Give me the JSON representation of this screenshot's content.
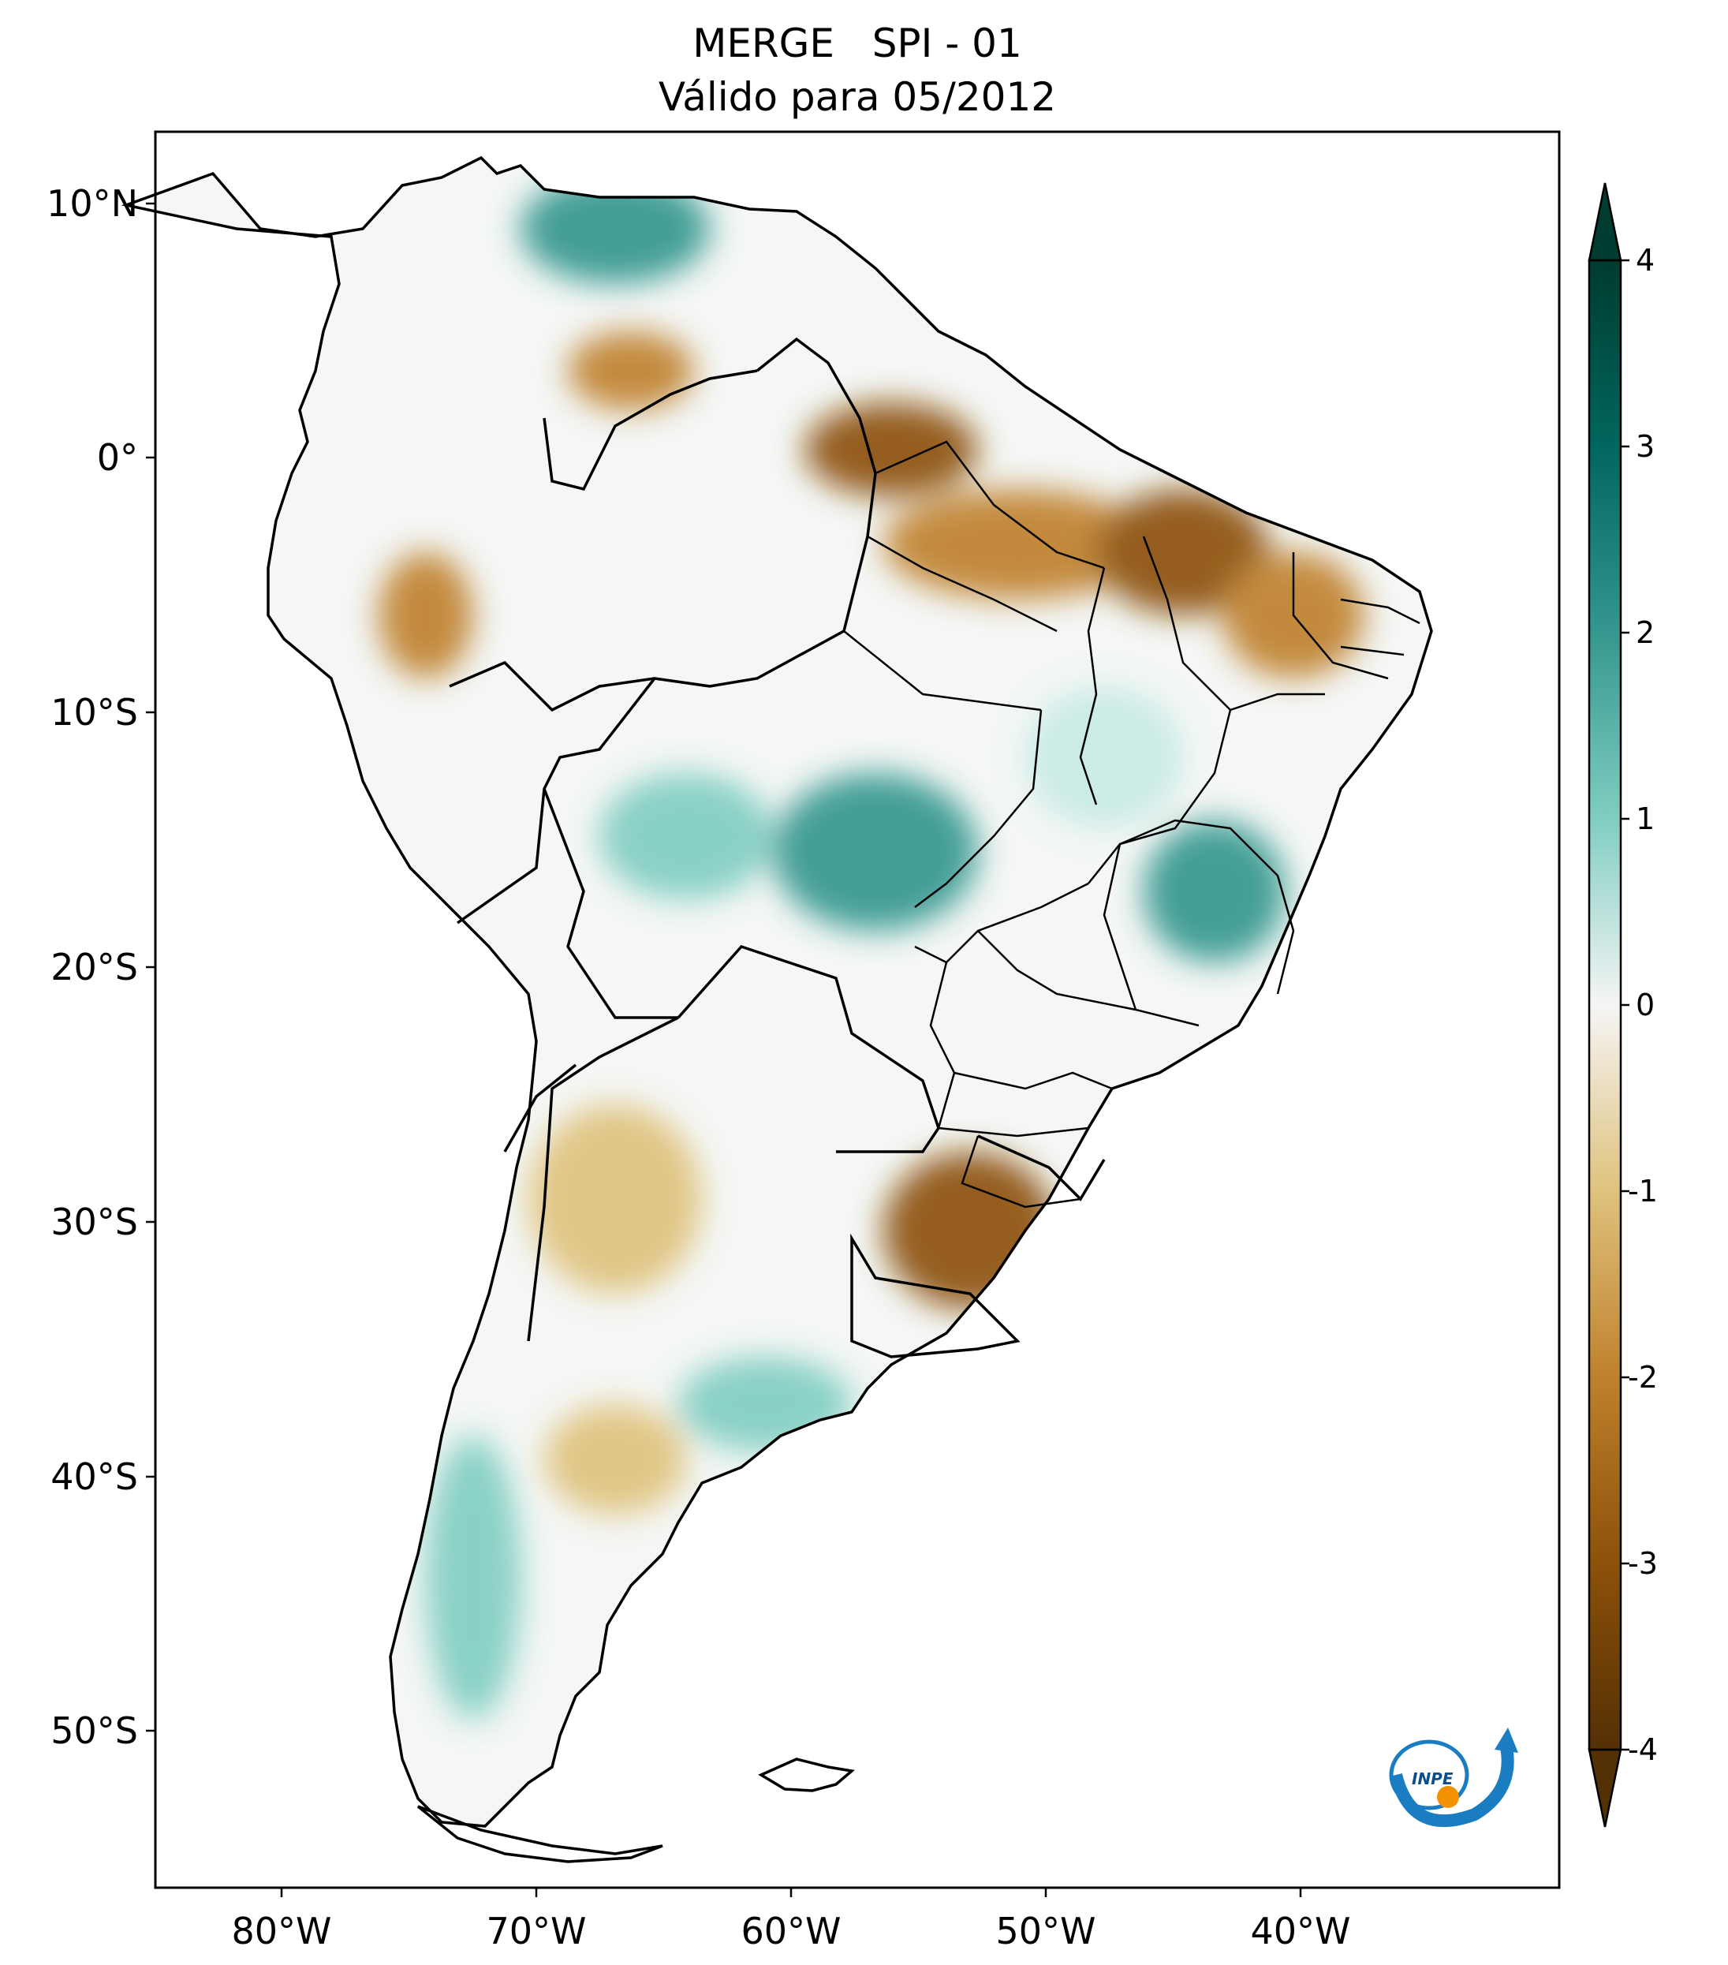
{
  "title": {
    "line1": "MERGE   SPI - 01",
    "line2": "Válido para 05/2012"
  },
  "map": {
    "region": "South America",
    "lon_range": [
      -85,
      -30
    ],
    "lat_range": [
      -56,
      13
    ],
    "lon_ticks": [
      "80°W",
      "70°W",
      "60°W",
      "50°W",
      "40°W"
    ],
    "lat_ticks": [
      "10°N",
      "0°",
      "10°S",
      "20°S",
      "30°S",
      "40°S",
      "50°S"
    ],
    "logo_text": "INPE"
  },
  "colorbar": {
    "colormap": "BrBG",
    "range": [
      -4,
      4
    ],
    "ticks": [
      "4",
      "3",
      "2",
      "1",
      "0",
      "-1",
      "-2",
      "-3",
      "-4"
    ],
    "extend": "both",
    "colors": {
      "max": "#003c30",
      "high": "#35978f",
      "mid": "#f5f5f5",
      "low": "#bf812d",
      "min": "#543005"
    }
  },
  "anomalies": [
    {
      "region": "Northern Brazil (Pará/Amapá)",
      "sign": "dry"
    },
    {
      "region": "Northeast Brazil",
      "sign": "dry"
    },
    {
      "region": "Rio Grande do Sul / Uruguay",
      "sign": "dry"
    },
    {
      "region": "Central Brazil (Mato Grosso)",
      "sign": "wet"
    },
    {
      "region": "Minas Gerais",
      "sign": "wet"
    },
    {
      "region": "Venezuela",
      "sign": "wet"
    },
    {
      "region": "Central Argentina",
      "sign": "wet"
    }
  ]
}
